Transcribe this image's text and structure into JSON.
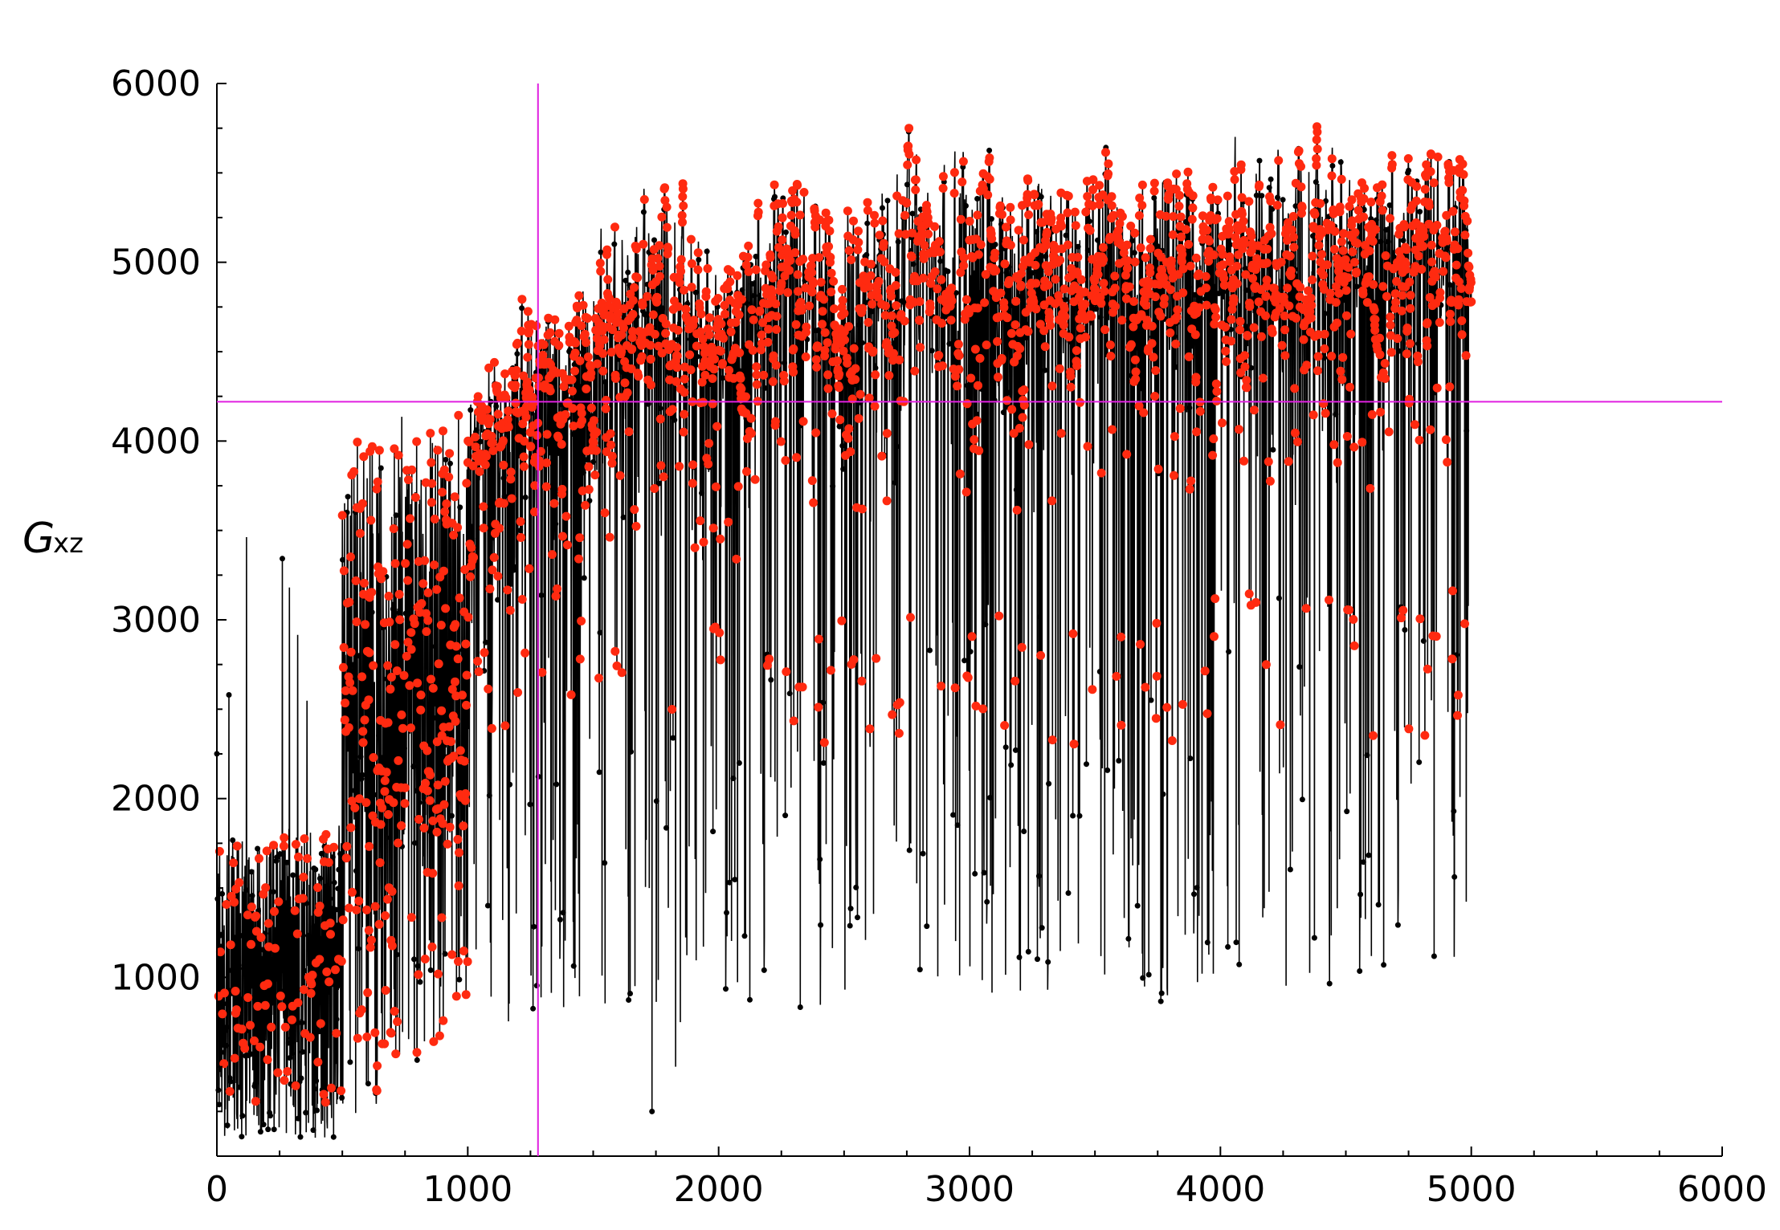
{
  "chart_data": {
    "type": "scatter",
    "title": "",
    "xlabel": "",
    "ylabel": "G",
    "ylabel_subscript": "xz",
    "xlim": [
      0,
      6000
    ],
    "ylim": [
      0,
      6000
    ],
    "x_ticks": [
      "0",
      "1000",
      "2000",
      "3000",
      "4000",
      "5000",
      "6000"
    ],
    "y_ticks": [
      "1000",
      "2000",
      "3000",
      "4000",
      "5000",
      "6000"
    ],
    "grid": false,
    "legend": "none",
    "crosshair": {
      "x": 1280,
      "y": 4220
    },
    "x_range_of_points": [
      0,
      5000
    ],
    "n_points": 5000,
    "colors": {
      "accepted_points": "#ff2a10",
      "rejected_points": "#000000",
      "trace_line": "#000000",
      "crosshair": "#e020e0",
      "axes": "#000000"
    },
    "series": [
      {
        "name": "",
        "style": "black connecting line with black markers",
        "approx_profile": [
          {
            "x": 0,
            "y_low": 100,
            "y_high": 3850
          },
          {
            "x": 250,
            "y_low": 100,
            "y_high": 3300
          },
          {
            "x": 500,
            "y_low": 100,
            "y_high": 4250
          },
          {
            "x": 750,
            "y_low": 450,
            "y_high": 4350
          },
          {
            "x": 1000,
            "y_low": 800,
            "y_high": 4550
          },
          {
            "x": 1250,
            "y_low": 700,
            "y_high": 5050
          },
          {
            "x": 1500,
            "y_low": 900,
            "y_high": 5250
          },
          {
            "x": 1750,
            "y_low": 200,
            "y_high": 5650
          },
          {
            "x": 2000,
            "y_low": 850,
            "y_high": 5300
          },
          {
            "x": 2250,
            "y_low": 800,
            "y_high": 5750
          },
          {
            "x": 2500,
            "y_low": 850,
            "y_high": 5500
          },
          {
            "x": 2750,
            "y_low": 1000,
            "y_high": 5750
          },
          {
            "x": 3000,
            "y_low": 950,
            "y_high": 5750
          },
          {
            "x": 3250,
            "y_low": 850,
            "y_high": 5750
          },
          {
            "x": 3500,
            "y_low": 950,
            "y_high": 5800
          },
          {
            "x": 3750,
            "y_low": 850,
            "y_high": 5800
          },
          {
            "x": 4000,
            "y_low": 1000,
            "y_high": 5850
          },
          {
            "x": 4250,
            "y_low": 950,
            "y_high": 5800
          },
          {
            "x": 4500,
            "y_low": 900,
            "y_high": 5900
          },
          {
            "x": 4750,
            "y_low": 1100,
            "y_high": 5850
          },
          {
            "x": 5000,
            "y_low": 1100,
            "y_high": 5900
          }
        ]
      }
    ]
  }
}
